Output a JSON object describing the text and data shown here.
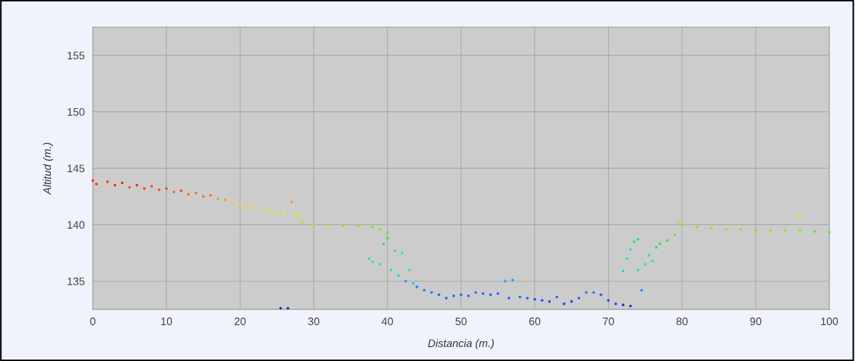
{
  "chart_data": {
    "type": "scatter",
    "xlabel": "Distancia (m.)",
    "ylabel": "Altitud (m.)",
    "xlim": [
      0,
      100
    ],
    "ylim": [
      132.5,
      157.5
    ],
    "xticks": [
      0,
      10,
      20,
      30,
      40,
      50,
      60,
      70,
      80,
      90,
      100
    ],
    "yticks": [
      135,
      140,
      145,
      150,
      155
    ],
    "grid": true,
    "marker": "circle",
    "series": [
      {
        "x": [
          0,
          0.5,
          2,
          3,
          4,
          5,
          6,
          7,
          8,
          9,
          10,
          11,
          12,
          13,
          14,
          15,
          16,
          17,
          18,
          19,
          20,
          21,
          22,
          23,
          24,
          25,
          26,
          27,
          27.5,
          28,
          25.5,
          26.5,
          28.5,
          30,
          32,
          34,
          36,
          38,
          39,
          40,
          37.5,
          38,
          39,
          39.5,
          40,
          40.5,
          41,
          41.5,
          42,
          42.5,
          43,
          43.5,
          44,
          45,
          46,
          47,
          48,
          49,
          50,
          51,
          52,
          53,
          54,
          55,
          56,
          57,
          56.5,
          58,
          59,
          60,
          61,
          62,
          63,
          64,
          65,
          66,
          67,
          68,
          69,
          70,
          71,
          72,
          73,
          72,
          72.5,
          73,
          73.5,
          74,
          74.5,
          74,
          75,
          75.5,
          76,
          76.5,
          77,
          78,
          79,
          79.5,
          80,
          82,
          84,
          86,
          88,
          90,
          92,
          94,
          96,
          96,
          98,
          100
        ],
        "values": [
          143.9,
          143.6,
          143.8,
          143.5,
          143.7,
          143.3,
          143.5,
          143.2,
          143.4,
          143.1,
          143.2,
          142.9,
          143.0,
          142.7,
          142.8,
          142.5,
          142.6,
          142.3,
          142.2,
          141.9,
          141.8,
          141.5,
          141.5,
          141.2,
          141.2,
          141.0,
          141.1,
          142.0,
          140.9,
          140.8,
          132.6,
          132.6,
          140.2,
          140.0,
          140.0,
          139.9,
          139.9,
          139.8,
          139.6,
          139.3,
          137.0,
          136.7,
          136.5,
          138.3,
          138.8,
          136.0,
          137.7,
          135.5,
          137.5,
          135.0,
          136.0,
          134.8,
          134.5,
          134.2,
          134.0,
          133.8,
          133.5,
          133.7,
          133.8,
          133.7,
          134.0,
          133.9,
          133.8,
          133.9,
          135.0,
          135.1,
          133.5,
          133.6,
          133.5,
          133.4,
          133.3,
          133.2,
          133.6,
          133.0,
          133.2,
          133.5,
          134.0,
          134.0,
          133.8,
          133.3,
          133.0,
          132.9,
          132.8,
          135.9,
          137.0,
          137.8,
          138.5,
          138.7,
          134.2,
          136.0,
          136.5,
          137.3,
          136.8,
          138.0,
          138.3,
          138.6,
          139.1,
          140.2,
          139.9,
          139.8,
          139.7,
          139.6,
          139.6,
          139.5,
          139.5,
          139.5,
          140.8,
          139.5,
          139.4,
          139.3
        ],
        "colors": [
          "#ff2a00",
          "#ff2a00",
          "#ff2a00",
          "#ff2a00",
          "#ff2a00",
          "#ff4a00",
          "#ff2a00",
          "#ff4a00",
          "#ff4a00",
          "#ff4a00",
          "#ff4a00",
          "#ff7000",
          "#ff4a00",
          "#ff7000",
          "#ff7000",
          "#ff7000",
          "#ff7000",
          "#ff9a00",
          "#ff9a00",
          "#ffc800",
          "#ffc800",
          "#ffc800",
          "#ffc800",
          "#f0f000",
          "#f0f000",
          "#f0f000",
          "#f0f000",
          "#ff9a00",
          "#d8f000",
          "#d8f000",
          "#2020d0",
          "#2020d0",
          "#a8f000",
          "#a8f000",
          "#a8f000",
          "#80f000",
          "#80f000",
          "#80f000",
          "#80f000",
          "#60e820",
          "#20e8a0",
          "#20e0d0",
          "#20e0d0",
          "#30e050",
          "#30e050",
          "#20e0d0",
          "#20e8a0",
          "#20c8f0",
          "#20e8a0",
          "#20a0ff",
          "#20e0d0",
          "#20c8f0",
          "#2080ff",
          "#2080ff",
          "#2080ff",
          "#2060ff",
          "#2060ff",
          "#2060ff",
          "#2060ff",
          "#2060ff",
          "#2080ff",
          "#2060ff",
          "#2060ff",
          "#2060ff",
          "#20a0ff",
          "#20a0ff",
          "#2060ff",
          "#2060ff",
          "#2060ff",
          "#2040ff",
          "#2040ff",
          "#2040ff",
          "#2060ff",
          "#2040ff",
          "#2040ff",
          "#2060ff",
          "#2080ff",
          "#2080ff",
          "#2060ff",
          "#2040ff",
          "#2040ff",
          "#2020f0",
          "#2020f0",
          "#20c8f0",
          "#20e8a0",
          "#20e8a0",
          "#30e050",
          "#30e050",
          "#2080ff",
          "#20e0d0",
          "#20e0d0",
          "#20e8a0",
          "#20e0d0",
          "#30e050",
          "#30e050",
          "#30e050",
          "#60e820",
          "#a8f000",
          "#80f000",
          "#80f000",
          "#80f000",
          "#80f000",
          "#80f000",
          "#80f000",
          "#80f000",
          "#80f000",
          "#d8f000",
          "#80f000",
          "#60e820",
          "#60e820"
        ]
      }
    ]
  }
}
